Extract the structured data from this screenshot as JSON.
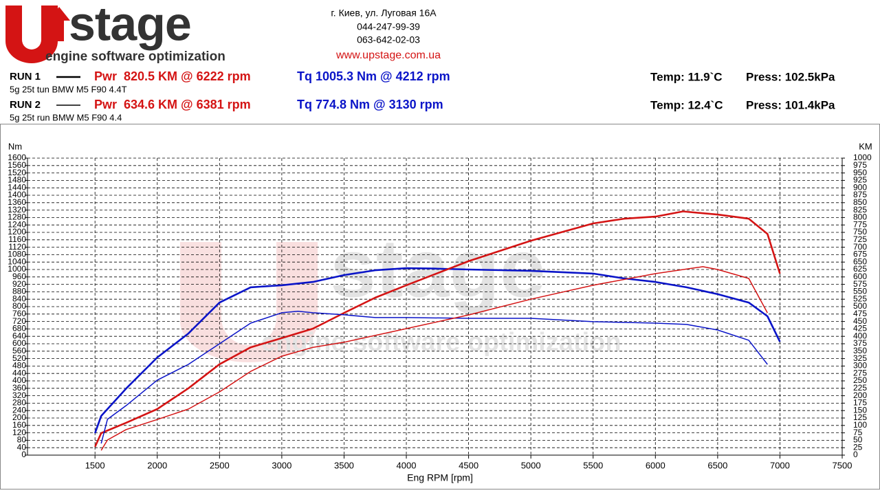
{
  "header": {
    "brand": "stage",
    "tagline": "engine software optimization",
    "address": "г. Киев, ул. Луговая 16А",
    "phone1": "044-247-99-39",
    "phone2": "063-642-02-03",
    "website": "www.upstage.com.ua"
  },
  "runs": [
    {
      "label": "RUN 1",
      "power": "Pwr  820.5 KM @ 6222 rpm",
      "torque": "Tq 1005.3 Nm @ 4212 rpm",
      "description": "5g 25t tun BMW M5 F90 4.4T",
      "temp": "Temp: 11.9`C",
      "press": "Press: 102.5kPa"
    },
    {
      "label": "RUN 2",
      "power": "Pwr  634.6 KM @ 6381 rpm",
      "torque": "Tq 774.8 Nm @ 3130 rpm",
      "description": "5g 25t run BMW M5 F90 4.4",
      "temp": "Temp: 12.4`C",
      "press": "Press: 101.4kPa"
    }
  ],
  "chart_data": {
    "type": "line",
    "xlabel": "Eng RPM [rpm]",
    "ylabel": "Nm",
    "y2label": "KM",
    "grid": true,
    "xlim": [
      958,
      7500
    ],
    "ylim": [
      0,
      1600
    ],
    "y2lim": [
      0,
      1000
    ],
    "xticks": [
      1500,
      2000,
      2500,
      3000,
      3500,
      4000,
      4500,
      5000,
      5500,
      6000,
      6500,
      7000,
      7500
    ],
    "yticks": [
      0,
      40,
      80,
      120,
      160,
      200,
      240,
      280,
      320,
      360,
      400,
      440,
      480,
      520,
      560,
      600,
      640,
      680,
      720,
      760,
      800,
      840,
      880,
      920,
      960,
      1000,
      1040,
      1080,
      1120,
      1160,
      1200,
      1240,
      1280,
      1320,
      1360,
      1400,
      1440,
      1480,
      1520,
      1560,
      1600
    ],
    "y2ticks": [
      0,
      25,
      50,
      75,
      100,
      125,
      150,
      175,
      200,
      225,
      250,
      275,
      300,
      325,
      350,
      375,
      400,
      425,
      450,
      475,
      500,
      525,
      550,
      575,
      600,
      625,
      650,
      675,
      700,
      725,
      750,
      775,
      800,
      825,
      850,
      875,
      900,
      925,
      950,
      975,
      1000
    ],
    "series": [
      {
        "color": "#0a14c8",
        "line_width": 2.6,
        "x": [
          1500,
          1550,
          1750,
          2000,
          2250,
          2500,
          2750,
          3000,
          3250,
          3500,
          3750,
          4000,
          4212,
          4500,
          5000,
          5500,
          5750,
          6000,
          6250,
          6500,
          6750,
          6900,
          7000
        ],
        "values": [
          118,
          211,
          359,
          526,
          655,
          822,
          904,
          915,
          933,
          970,
          996,
          1007,
          1005.3,
          1000,
          993,
          978,
          952,
          933,
          904,
          867,
          822,
          748,
          611
        ]
      },
      {
        "color": "#d41414",
        "line_width": 2.6,
        "axis": "y2",
        "x": [
          1500,
          1550,
          1750,
          2000,
          2250,
          2500,
          2750,
          3000,
          3250,
          3500,
          3750,
          4000,
          4500,
          5000,
          5500,
          5750,
          6000,
          6222,
          6500,
          6750,
          6900,
          7000
        ],
        "values": [
          28,
          74,
          109,
          155,
          225,
          306,
          363,
          394,
          426,
          479,
          530,
          572,
          653,
          722,
          780,
          796,
          803,
          820.5,
          810,
          796,
          745,
          611
        ]
      },
      {
        "color": "#0a14c8",
        "line_width": 1.5,
        "x": [
          1550,
          1600,
          1750,
          2000,
          2250,
          2500,
          2750,
          3000,
          3130,
          3250,
          3500,
          3750,
          4000,
          4500,
          5000,
          5500,
          6000,
          6250,
          6500,
          6750,
          6900
        ],
        "values": [
          63,
          193,
          267,
          404,
          489,
          600,
          711,
          767,
          774.8,
          767,
          756,
          741,
          741,
          737,
          737,
          719,
          711,
          704,
          674,
          619,
          489
        ]
      },
      {
        "color": "#d41414",
        "line_width": 1.5,
        "axis": "y2",
        "x": [
          1550,
          1600,
          1750,
          2000,
          2250,
          2500,
          2750,
          3000,
          3250,
          3500,
          4000,
          4500,
          5000,
          5500,
          6000,
          6381,
          6500,
          6750,
          6900
        ],
        "values": [
          16,
          51,
          86,
          120,
          155,
          213,
          282,
          333,
          363,
          380,
          426,
          472,
          525,
          572,
          611,
          634.6,
          625,
          595,
          479
        ]
      }
    ]
  }
}
